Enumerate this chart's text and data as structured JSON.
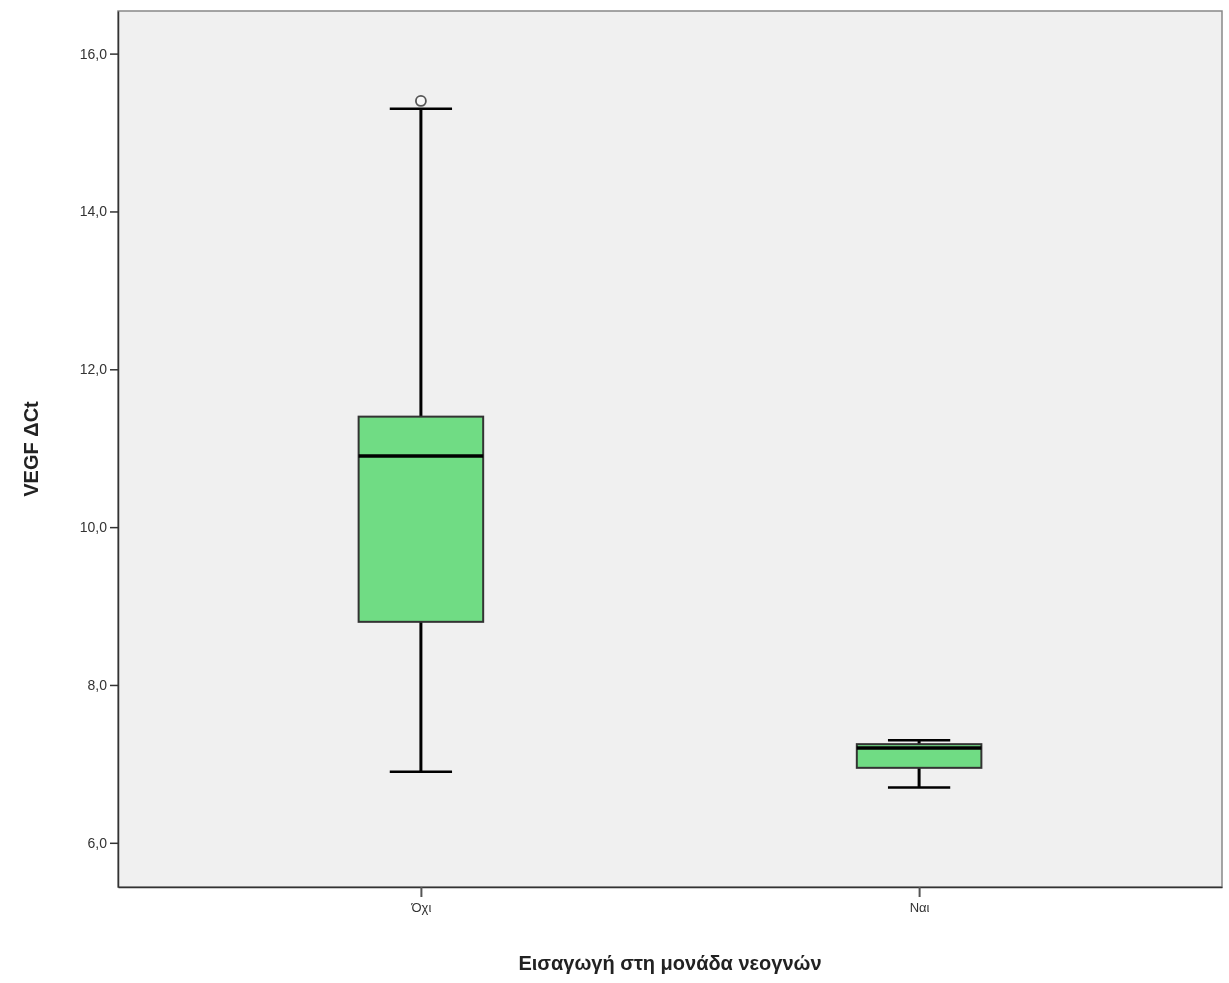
{
  "chart_data": {
    "type": "box",
    "xlabel": "Εισαγωγή στη μονάδα νεογνών",
    "ylabel": "VEGF ΔCt",
    "categories": [
      "Όχι",
      "Ναι"
    ],
    "boxes": [
      {
        "low": 6.9,
        "q1": 8.8,
        "median": 10.9,
        "q3": 11.4,
        "high": 15.3,
        "outliers": [
          15.4
        ]
      },
      {
        "low": 6.7,
        "q1": 6.95,
        "median": 7.2,
        "q3": 7.25,
        "high": 7.3
      }
    ],
    "color": "#70dc84",
    "ylim": [
      5.44,
      16.54
    ],
    "yticks": [
      {
        "value": 6,
        "label": "6,0"
      },
      {
        "value": 8,
        "label": "8,0"
      },
      {
        "value": 10,
        "label": "10,0"
      },
      {
        "value": 12,
        "label": "12,0"
      },
      {
        "value": 14,
        "label": "14,0"
      },
      {
        "value": 16,
        "label": "16,0"
      }
    ]
  }
}
